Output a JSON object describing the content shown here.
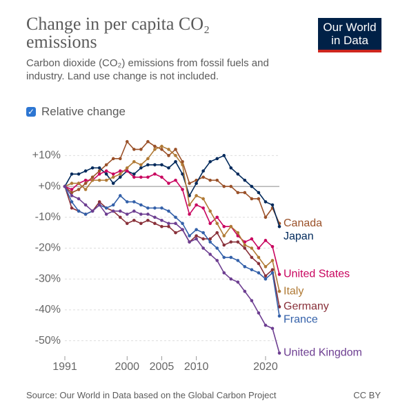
{
  "header": {
    "title": "Change in per capita CO₂ emissions",
    "subtitle": "Carbon dioxide (CO₂) emissions from fossil fuels and industry. Land use change is not included.",
    "logo": "Our World in Data",
    "toggle": "Relative change"
  },
  "footer": {
    "source": "Source: Our World in Data based on the Global Carbon Project",
    "license": "CC BY"
  },
  "chart_data": {
    "type": "line",
    "x": [
      1991,
      1992,
      1993,
      1994,
      1995,
      1996,
      1997,
      1998,
      1999,
      2000,
      2001,
      2002,
      2003,
      2004,
      2005,
      2006,
      2007,
      2008,
      2009,
      2010,
      2011,
      2012,
      2013,
      2014,
      2015,
      2016,
      2017,
      2018,
      2019,
      2020,
      2021,
      2022
    ],
    "xlim": [
      1991,
      2022
    ],
    "xticks": [
      1991,
      2000,
      2005,
      2010,
      2020
    ],
    "ylim": [
      -55,
      15
    ],
    "yticks": [
      {
        "value": 10,
        "label": "+10%"
      },
      {
        "value": 0,
        "label": "+0%"
      },
      {
        "value": -10,
        "label": "-10%"
      },
      {
        "value": -20,
        "label": "-20%"
      },
      {
        "value": -30,
        "label": "-30%"
      },
      {
        "value": -40,
        "label": "-40%"
      },
      {
        "value": -50,
        "label": "-50%"
      }
    ],
    "grid": true,
    "series": [
      {
        "name": "Canada",
        "color": "#9a5129",
        "values": [
          0,
          -2,
          -1,
          1,
          3,
          5,
          7,
          9,
          9,
          14.5,
          12,
          12,
          14.5,
          13,
          12,
          10,
          12,
          8,
          1,
          2,
          3,
          2,
          2,
          0,
          0,
          -2,
          -2,
          -4,
          -4,
          -10,
          -7,
          -12
        ]
      },
      {
        "name": "Japan",
        "color": "#00295b",
        "values": [
          0,
          4,
          4,
          5,
          6,
          6,
          4,
          1,
          3,
          5,
          4,
          6,
          7,
          7,
          7,
          6,
          8,
          4,
          -3,
          1,
          5,
          8,
          9,
          10,
          6,
          4,
          2,
          0,
          -2,
          -5,
          -6,
          -13
        ]
      },
      {
        "name": "United States",
        "color": "#c9055f",
        "values": [
          0,
          -1,
          1,
          2,
          2,
          4,
          5,
          4,
          5,
          5,
          3,
          3,
          3,
          4,
          3,
          1,
          2,
          -1,
          -9,
          -6,
          -7,
          -12,
          -10,
          -13,
          -13,
          -16,
          -18,
          -17,
          -20,
          -17.5,
          -19.5,
          -28.5
        ]
      },
      {
        "name": "Italy",
        "color": "#b07a35",
        "values": [
          0,
          1,
          1,
          -1,
          2,
          2,
          2,
          3,
          4,
          6,
          8,
          7,
          9,
          12,
          13,
          12,
          10,
          7,
          -6,
          -3,
          -4,
          -8,
          -12,
          -16,
          -13,
          -15,
          -19,
          -20,
          -23,
          -26,
          -24,
          -34
        ]
      },
      {
        "name": "Germany",
        "color": "#883039",
        "values": [
          0,
          -7,
          -8,
          -9,
          -8,
          -5,
          -7,
          -8,
          -10,
          -12,
          -11,
          -12,
          -11,
          -12,
          -13,
          -13,
          -15,
          -14,
          -18,
          -16,
          -17,
          -17,
          -15,
          -19,
          -18,
          -18,
          -20,
          -23,
          -25,
          -29,
          -27,
          -39
        ]
      },
      {
        "name": "France",
        "color": "#3360a9",
        "values": [
          0,
          -5,
          -8,
          -9,
          -8,
          -6,
          -7,
          -6,
          -3,
          -5,
          -5,
          -6,
          -7,
          -7,
          -7,
          -8,
          -10,
          -12,
          -16,
          -14,
          -15,
          -18,
          -20,
          -23,
          -23,
          -24,
          -26,
          -27,
          -28,
          -30,
          -28,
          -42
        ]
      },
      {
        "name": "United Kingdom",
        "color": "#6d3e91",
        "values": [
          0,
          -3,
          -4,
          -6,
          -8,
          -6,
          -9,
          -8,
          -8,
          -9,
          -8,
          -9,
          -9,
          -10,
          -11,
          -12,
          -12,
          -14,
          -18,
          -17,
          -20,
          -22,
          -24,
          -28,
          -30,
          -31,
          -34,
          -37,
          -41,
          -45,
          -46,
          -54
        ]
      }
    ]
  }
}
